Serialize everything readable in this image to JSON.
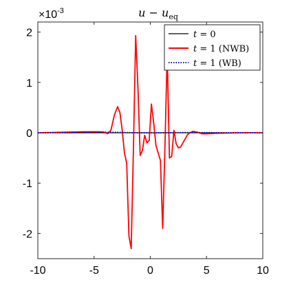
{
  "chart_data": {
    "type": "line",
    "title_main": "u − u",
    "title_sub": "eq",
    "y_multiplier_base": "×10",
    "y_multiplier_exp": "-3",
    "xlim": [
      -10,
      10
    ],
    "ylim": [
      -2.5,
      2.2
    ],
    "x_ticks": [
      -10,
      -5,
      0,
      5,
      10
    ],
    "x_tick_labels": [
      "-10",
      "-5",
      "0",
      "5",
      "10"
    ],
    "y_ticks": [
      -2,
      -1,
      0,
      1,
      2
    ],
    "y_tick_labels": [
      "-2",
      "-1",
      "0",
      "1",
      "2"
    ],
    "grid": false,
    "legend_position": "top-right",
    "series": [
      {
        "name": "t = 0",
        "legend_var": "t",
        "legend_rest": " = 0",
        "color": "#000000",
        "style": "solid",
        "x": [
          -10,
          10
        ],
        "y": [
          0,
          0
        ]
      },
      {
        "name": "t = 1 (NWB)",
        "legend_var": "t",
        "legend_rest": " = 1 (NWB)",
        "color": "#ff0000",
        "style": "solid",
        "x": [
          -10,
          -8,
          -6,
          -4.5,
          -4,
          -3.8,
          -3.5,
          -3.2,
          -2.9,
          -2.7,
          -2.5,
          -2.3,
          -2.1,
          -1.9,
          -1.7,
          -1.5,
          -1.3,
          -1.1,
          -0.9,
          -0.7,
          -0.5,
          -0.3,
          -0.1,
          0.1,
          0.3,
          0.5,
          0.7,
          0.9,
          1.1,
          1.3,
          1.5,
          1.7,
          1.9,
          2.1,
          2.3,
          2.5,
          2.7,
          2.9,
          3.1,
          3.3,
          3.5,
          3.8,
          4.2,
          4.6,
          5,
          6,
          8,
          10
        ],
        "y": [
          0,
          0.01,
          0.02,
          0.02,
          0.01,
          -0.02,
          0.05,
          0.35,
          0.52,
          0.4,
          0.05,
          -0.4,
          -0.6,
          -2.05,
          -2.3,
          -0.3,
          1.93,
          0.9,
          -0.45,
          -0.35,
          -0.05,
          -0.2,
          -0.15,
          0.57,
          0.2,
          -0.25,
          -0.4,
          -0.55,
          -1.9,
          -0.3,
          1.6,
          -0.5,
          -0.47,
          0.05,
          -0.22,
          -0.3,
          -0.28,
          -0.2,
          -0.12,
          -0.04,
          0.0,
          0.03,
          0.01,
          -0.02,
          -0.02,
          -0.01,
          0.0,
          0.0
        ]
      },
      {
        "name": "t = 1 (WB)",
        "legend_var": "t",
        "legend_rest": " = 1 (WB)",
        "color": "#0000cc",
        "style": "dotted",
        "x": [
          -10,
          -8,
          -6,
          -4,
          -3,
          -2,
          -1,
          0,
          1,
          2,
          3,
          4,
          6,
          8,
          10
        ],
        "y": [
          0,
          0.002,
          0.004,
          0.01,
          0.012,
          0.005,
          0.0,
          -0.002,
          0.0,
          0.004,
          0.006,
          0.004,
          0.002,
          0.001,
          0
        ]
      }
    ]
  }
}
